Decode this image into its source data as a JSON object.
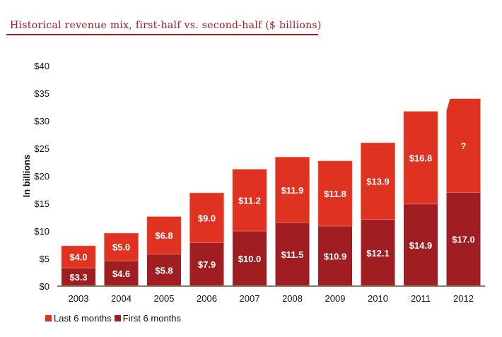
{
  "header": {
    "title": "Historical revenue mix, first-half vs. second-half ($ billions)"
  },
  "colors": {
    "title": "#a2191f",
    "last_6_months": "#e03220",
    "first_6_months": "#a01d21",
    "axis": "#8a7d60"
  },
  "chart_data": {
    "type": "bar",
    "stacked": true,
    "title": "Historical revenue mix, first-half vs. second-half ($ billions)",
    "xlabel": "",
    "ylabel": "In billions",
    "ylim": [
      0,
      40
    ],
    "yticks": [
      "$0",
      "$5",
      "$10",
      "$15",
      "$20",
      "$25",
      "$30",
      "$35",
      "$40"
    ],
    "ytick_values": [
      0,
      5,
      10,
      15,
      20,
      25,
      30,
      35,
      40
    ],
    "grid": false,
    "legend": "bottom-left",
    "categories": [
      "2003",
      "2004",
      "2005",
      "2006",
      "2007",
      "2008",
      "2009",
      "2010",
      "2011",
      "2012"
    ],
    "series": [
      {
        "name": "First 6 months",
        "values": [
          3.3,
          4.6,
          5.8,
          7.9,
          10.0,
          11.5,
          10.9,
          12.1,
          14.9,
          17.0
        ],
        "labels": [
          "$3.3",
          "$4.6",
          "$5.8",
          "$7.9",
          "$10.0",
          "$11.5",
          "$10.9",
          "$12.1",
          "$14.9",
          "$17.0"
        ]
      },
      {
        "name": "Last 6 months",
        "values": [
          4.0,
          5.0,
          6.8,
          9.0,
          11.2,
          11.9,
          11.8,
          13.9,
          16.8,
          17.0
        ],
        "labels": [
          "$4.0",
          "$5.0",
          "$6.8",
          "$9.0",
          "$11.2",
          "$11.9",
          "$11.8",
          "$13.9",
          "$16.8",
          "?"
        ],
        "notes": "2012 second-half value unknown (shown as '?'); bar drawn as projection with chamfered top-left corner"
      }
    ]
  },
  "legend": {
    "items": [
      {
        "label": "Last 6 months",
        "color": "#e03220"
      },
      {
        "label": "First 6 months",
        "color": "#a01d21"
      }
    ]
  }
}
